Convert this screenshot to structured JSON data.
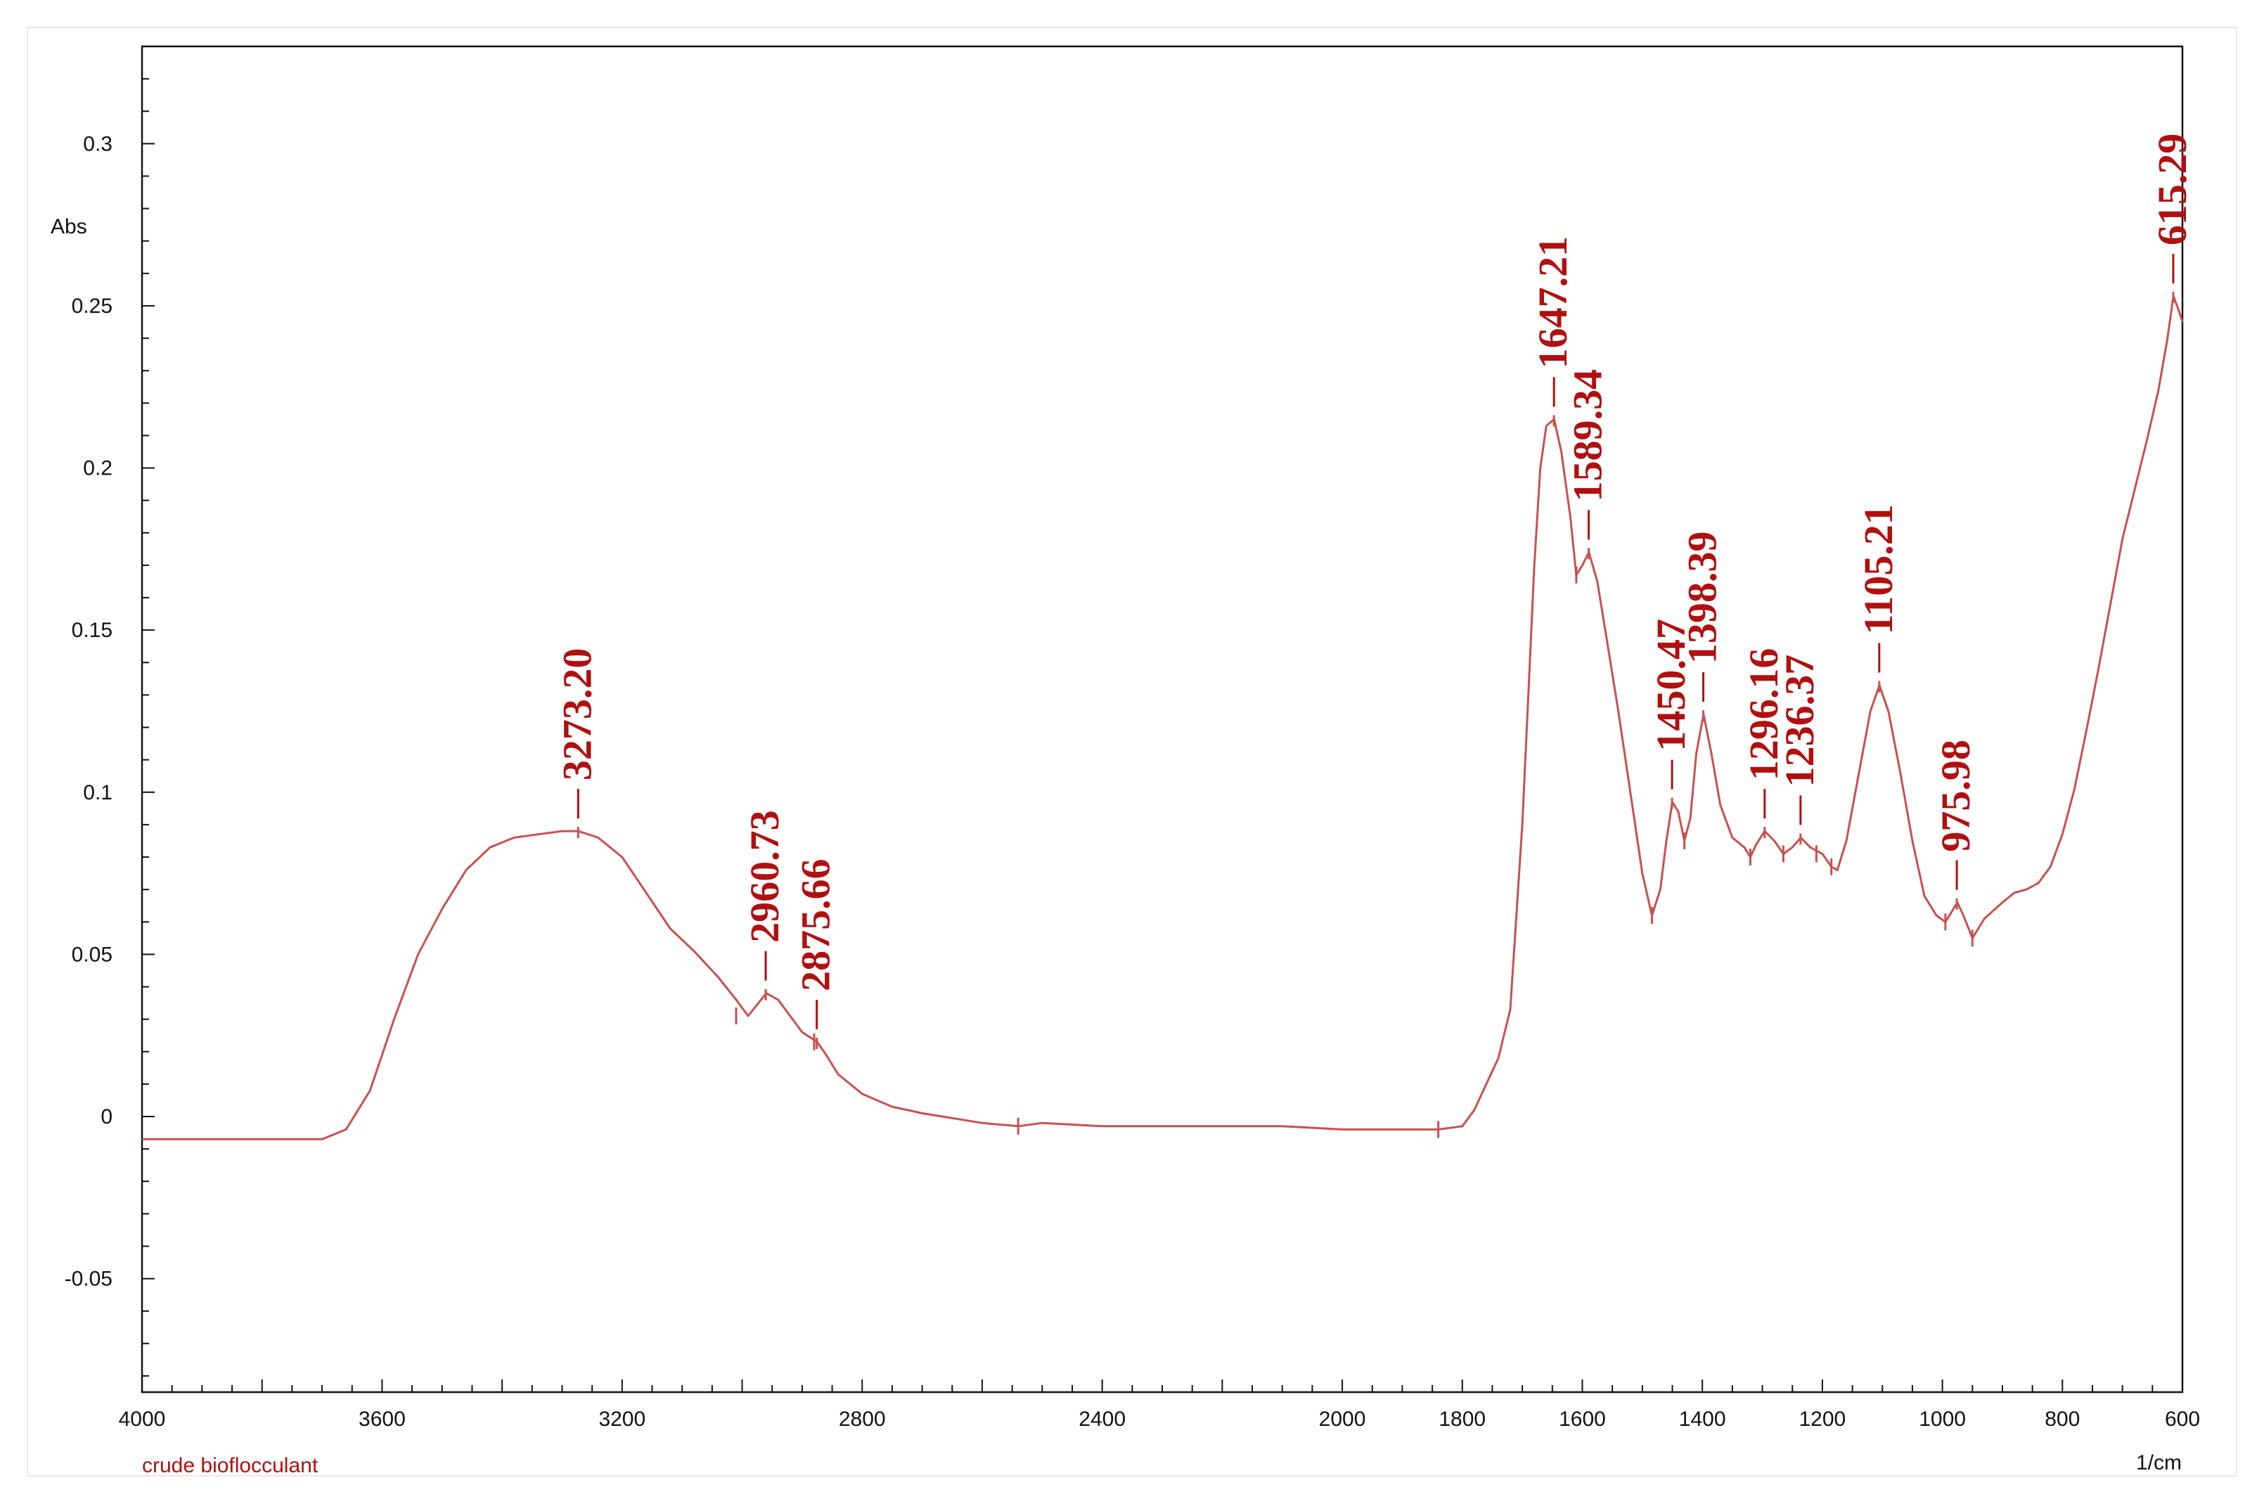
{
  "chart_data": {
    "type": "line",
    "ylabel": "Abs",
    "xunit": "1/cm",
    "series_label": "crude bioflocculant",
    "colors": {
      "line": "#c9504f",
      "labels": "#b01010"
    },
    "xlim": [
      4000,
      600
    ],
    "ylim": [
      -0.085,
      0.33
    ],
    "xticks": [
      4000,
      3600,
      3200,
      2800,
      2400,
      2000,
      1800,
      1600,
      1400,
      1200,
      1000,
      800,
      600
    ],
    "xtick_labels": [
      "4000",
      "3600",
      "3200",
      "2800",
      "2400",
      "2000",
      "1800",
      "1600",
      "1400",
      "1200",
      "1000",
      "800",
      "600"
    ],
    "yticks": [
      -0.05,
      0,
      0.05,
      0.1,
      0.15,
      0.2,
      0.25,
      0.3
    ],
    "ytick_labels": [
      "-0.05",
      "0",
      "0.05",
      "0.1",
      "0.15",
      "0.2",
      "0.25",
      "0.3"
    ],
    "series": [
      {
        "x": [
          4000,
          3900,
          3800,
          3700,
          3660,
          3620,
          3580,
          3540,
          3500,
          3460,
          3420,
          3380,
          3340,
          3300,
          3273,
          3240,
          3200,
          3160,
          3120,
          3080,
          3040,
          3010,
          2990,
          2960,
          2940,
          2920,
          2900,
          2875,
          2860,
          2840,
          2800,
          2750,
          2700,
          2600,
          2540,
          2500,
          2400,
          2300,
          2200,
          2100,
          2000,
          1900,
          1840,
          1800,
          1780,
          1760,
          1740,
          1720,
          1700,
          1690,
          1680,
          1670,
          1660,
          1647,
          1635,
          1620,
          1610,
          1600,
          1589,
          1575,
          1560,
          1540,
          1520,
          1500,
          1484,
          1470,
          1460,
          1450,
          1440,
          1430,
          1420,
          1410,
          1398,
          1385,
          1370,
          1350,
          1330,
          1320,
          1310,
          1296,
          1280,
          1265,
          1250,
          1236,
          1220,
          1200,
          1185,
          1175,
          1160,
          1140,
          1120,
          1105,
          1090,
          1070,
          1050,
          1030,
          1010,
          995,
          985,
          975,
          965,
          950,
          930,
          900,
          880,
          860,
          840,
          820,
          800,
          780,
          760,
          740,
          720,
          700,
          680,
          660,
          640,
          625,
          615,
          605,
          600
        ],
        "y": [
          -0.007,
          -0.007,
          -0.007,
          -0.007,
          -0.004,
          0.008,
          0.03,
          0.05,
          0.064,
          0.076,
          0.083,
          0.086,
          0.087,
          0.088,
          0.088,
          0.086,
          0.08,
          0.069,
          0.058,
          0.051,
          0.043,
          0.036,
          0.031,
          0.038,
          0.036,
          0.031,
          0.026,
          0.023,
          0.019,
          0.013,
          0.007,
          0.003,
          0.001,
          -0.002,
          -0.003,
          -0.002,
          -0.003,
          -0.003,
          -0.003,
          -0.003,
          -0.004,
          -0.004,
          -0.004,
          -0.003,
          0.002,
          0.01,
          0.018,
          0.033,
          0.09,
          0.13,
          0.17,
          0.2,
          0.213,
          0.215,
          0.205,
          0.185,
          0.167,
          0.17,
          0.174,
          0.165,
          0.148,
          0.125,
          0.1,
          0.075,
          0.062,
          0.07,
          0.085,
          0.097,
          0.094,
          0.085,
          0.092,
          0.112,
          0.124,
          0.112,
          0.096,
          0.086,
          0.083,
          0.08,
          0.084,
          0.088,
          0.085,
          0.081,
          0.083,
          0.086,
          0.083,
          0.081,
          0.077,
          0.076,
          0.085,
          0.105,
          0.125,
          0.133,
          0.125,
          0.106,
          0.085,
          0.068,
          0.062,
          0.06,
          0.063,
          0.066,
          0.062,
          0.055,
          0.061,
          0.066,
          0.069,
          0.07,
          0.072,
          0.077,
          0.087,
          0.101,
          0.119,
          0.138,
          0.158,
          0.178,
          0.193,
          0.208,
          0.224,
          0.24,
          0.253,
          0.248,
          0.245
        ]
      }
    ],
    "peaks": [
      {
        "x": 3273.2,
        "y": 0.088,
        "label": "3273.20"
      },
      {
        "x": 2960.73,
        "y": 0.038,
        "label": "2960.73"
      },
      {
        "x": 2875.66,
        "y": 0.023,
        "label": "2875.66"
      },
      {
        "x": 1647.21,
        "y": 0.215,
        "label": "1647.21"
      },
      {
        "x": 1589.34,
        "y": 0.174,
        "label": "1589.34"
      },
      {
        "x": 1450.47,
        "y": 0.097,
        "label": "1450.47"
      },
      {
        "x": 1398.39,
        "y": 0.124,
        "label": "1398.39"
      },
      {
        "x": 1296.16,
        "y": 0.088,
        "label": "1296.16"
      },
      {
        "x": 1236.37,
        "y": 0.086,
        "label": "1236.37"
      },
      {
        "x": 1105.21,
        "y": 0.133,
        "label": "1105.21"
      },
      {
        "x": 975.98,
        "y": 0.066,
        "label": "975.98"
      },
      {
        "x": 615.29,
        "y": 0.253,
        "label": "615.29"
      }
    ],
    "valley_marks": [
      {
        "x": 3010,
        "y": 0.031
      },
      {
        "x": 2880,
        "y": 0.023
      },
      {
        "x": 2540,
        "y": -0.003
      },
      {
        "x": 1840,
        "y": -0.004
      },
      {
        "x": 1610,
        "y": 0.167
      },
      {
        "x": 1484,
        "y": 0.062
      },
      {
        "x": 1430,
        "y": 0.085
      },
      {
        "x": 1320,
        "y": 0.08
      },
      {
        "x": 1265,
        "y": 0.081
      },
      {
        "x": 1210,
        "y": 0.081
      },
      {
        "x": 1185,
        "y": 0.077
      },
      {
        "x": 995,
        "y": 0.06
      },
      {
        "x": 950,
        "y": 0.055
      }
    ]
  }
}
